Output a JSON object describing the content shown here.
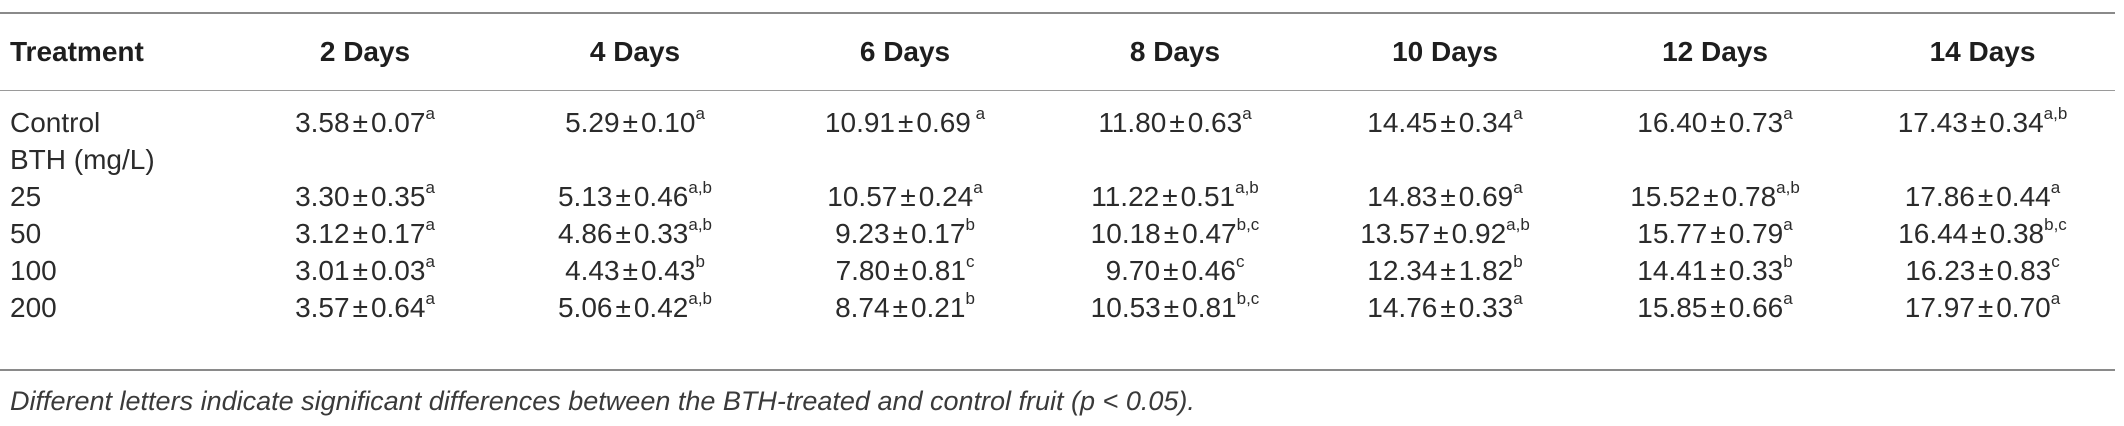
{
  "table": {
    "headers": [
      "Treatment",
      "2 Days",
      "4 Days",
      "6 Days",
      "8 Days",
      "10 Days",
      "12 Days",
      "14 Days"
    ],
    "rows": [
      {
        "label": "Control",
        "cells": [
          {
            "m": "3.58",
            "sd": "0.07",
            "sup": "a"
          },
          {
            "m": "5.29",
            "sd": "0.10",
            "sup": "a"
          },
          {
            "m": "10.91",
            "sd": "0.69",
            "sup": " a"
          },
          {
            "m": "11.80",
            "sd": "0.63",
            "sup": "a"
          },
          {
            "m": "14.45",
            "sd": "0.34",
            "sup": "a"
          },
          {
            "m": "16.40",
            "sd": "0.73",
            "sup": "a"
          },
          {
            "m": "17.43",
            "sd": "0.34",
            "sup": "a,b"
          }
        ]
      },
      {
        "label": "BTH (mg/L)",
        "cells": []
      },
      {
        "label": "25",
        "cells": [
          {
            "m": "3.30",
            "sd": "0.35",
            "sup": "a"
          },
          {
            "m": "5.13",
            "sd": "0.46",
            "sup": "a,b"
          },
          {
            "m": "10.57",
            "sd": "0.24",
            "sup": "a"
          },
          {
            "m": "11.22",
            "sd": "0.51",
            "sup": "a,b"
          },
          {
            "m": "14.83",
            "sd": "0.69",
            "sup": "a"
          },
          {
            "m": "15.52",
            "sd": "0.78",
            "sup": "a,b"
          },
          {
            "m": "17.86",
            "sd": "0.44",
            "sup": "a"
          }
        ]
      },
      {
        "label": "50",
        "cells": [
          {
            "m": "3.12",
            "sd": "0.17",
            "sup": "a"
          },
          {
            "m": "4.86",
            "sd": "0.33",
            "sup": "a,b"
          },
          {
            "m": "9.23",
            "sd": "0.17",
            "sup": "b"
          },
          {
            "m": "10.18",
            "sd": "0.47",
            "sup": "b,c"
          },
          {
            "m": "13.57",
            "sd": "0.92",
            "sup": "a,b"
          },
          {
            "m": "15.77",
            "sd": "0.79",
            "sup": "a"
          },
          {
            "m": "16.44",
            "sd": "0.38",
            "sup": "b,c"
          }
        ]
      },
      {
        "label": "100",
        "cells": [
          {
            "m": "3.01",
            "sd": "0.03",
            "sup": "a"
          },
          {
            "m": "4.43",
            "sd": "0.43",
            "sup": "b"
          },
          {
            "m": "7.80",
            "sd": "0.81",
            "sup": "c"
          },
          {
            "m": "9.70",
            "sd": "0.46",
            "sup": "c"
          },
          {
            "m": "12.34",
            "sd": "1.82",
            "sup": "b"
          },
          {
            "m": "14.41",
            "sd": "0.33",
            "sup": "b"
          },
          {
            "m": "16.23",
            "sd": "0.83",
            "sup": "c"
          }
        ]
      },
      {
        "label": "200",
        "cells": [
          {
            "m": "3.57",
            "sd": "0.64",
            "sup": "a"
          },
          {
            "m": "5.06",
            "sd": "0.42",
            "sup": "a,b"
          },
          {
            "m": "8.74",
            "sd": "0.21",
            "sup": "b"
          },
          {
            "m": "10.53",
            "sd": "0.81",
            "sup": "b,c"
          },
          {
            "m": "14.76",
            "sd": "0.33",
            "sup": "a"
          },
          {
            "m": "15.85",
            "sd": "0.66",
            "sup": "a"
          },
          {
            "m": "17.97",
            "sd": "0.70",
            "sup": "a"
          }
        ]
      }
    ],
    "pm_symbol": "±",
    "footnote": "Different letters indicate significant differences between the BTH-treated and control fruit (p < 0.05)."
  }
}
